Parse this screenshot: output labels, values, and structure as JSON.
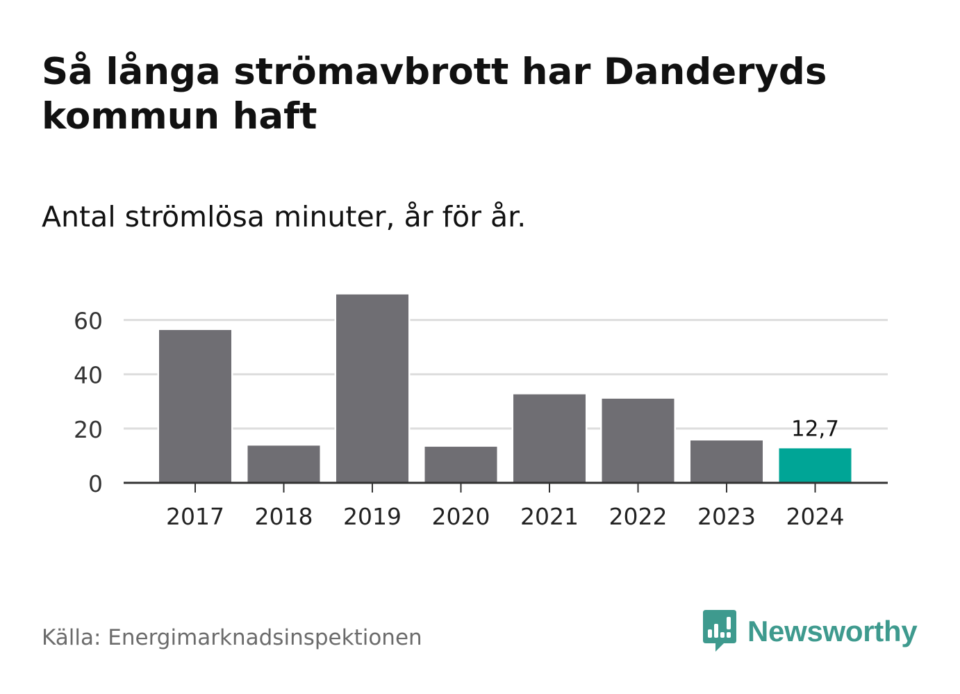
{
  "title": "Så långa strömavbrott har Danderyds kommun haft",
  "subtitle": "Antal strömlösa minuter, år för år.",
  "source": "Källa: Energimarknadsinspektionen",
  "brand": {
    "name": "Newsworthy",
    "color": "#3e9a8e",
    "icon": "newsworthy-logo-icon"
  },
  "colors": {
    "bar": "#6f6e73",
    "highlight": "#00a596",
    "grid": "#dddddd",
    "axis": "#333333"
  },
  "chart_data": {
    "type": "bar",
    "title": "Så långa strömavbrott har Danderyds kommun haft",
    "subtitle": "Antal strömlösa minuter, år för år.",
    "xlabel": "",
    "ylabel": "",
    "categories": [
      "2017",
      "2018",
      "2019",
      "2020",
      "2021",
      "2022",
      "2023",
      "2024"
    ],
    "values": [
      56.3,
      13.7,
      69.4,
      13.3,
      32.6,
      31.0,
      15.6,
      12.7
    ],
    "ylim": [
      0,
      70
    ],
    "yticks": [
      0,
      20,
      40,
      60
    ],
    "grid": true,
    "highlight_index": 7,
    "data_labels": [
      {
        "index": 7,
        "text": "12,7"
      }
    ]
  }
}
